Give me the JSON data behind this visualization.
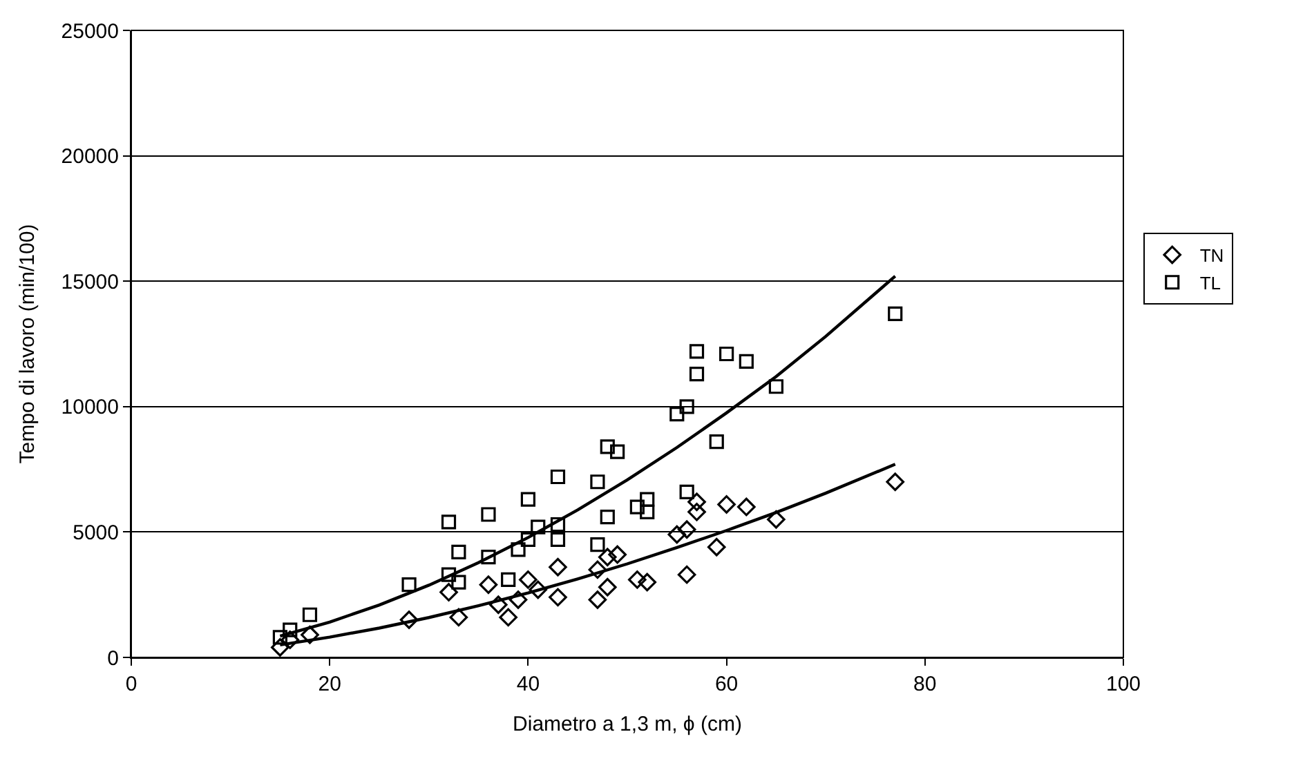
{
  "chart_data": {
    "type": "scatter",
    "xlabel": "Diametro a 1,3 m, ϕ (cm)",
    "ylabel": "Tempo di lavoro (min/100)",
    "xlim": [
      0,
      100
    ],
    "xticks": [
      0,
      20,
      40,
      60,
      80,
      100
    ],
    "ylim": [
      0,
      25000
    ],
    "yticks": [
      0,
      5000,
      10000,
      15000,
      20000,
      25000
    ],
    "grid": "y",
    "legend": "right",
    "series": [
      {
        "name": "TN",
        "color": "#000000",
        "marker": "diamond",
        "x": [
          15,
          16,
          18,
          28,
          32,
          33,
          36,
          37,
          38,
          39,
          40,
          41,
          43,
          43,
          47,
          47,
          48,
          48,
          49,
          51,
          52,
          55,
          56,
          56,
          57,
          57,
          59,
          60,
          62,
          65,
          77
        ],
        "values": [
          400,
          700,
          900,
          1500,
          2600,
          1600,
          2900,
          2100,
          1600,
          2300,
          3100,
          2700,
          3600,
          2400,
          2300,
          3500,
          4000,
          2800,
          4100,
          3100,
          3000,
          4900,
          3300,
          5100,
          5800,
          6200,
          4400,
          6100,
          6000,
          5500,
          7000
        ]
      },
      {
        "name": "TL",
        "color": "#000000",
        "marker": "square",
        "x": [
          15,
          16,
          18,
          28,
          32,
          32,
          33,
          33,
          36,
          36,
          38,
          39,
          40,
          40,
          41,
          43,
          43,
          43,
          47,
          47,
          48,
          48,
          49,
          51,
          52,
          52,
          55,
          56,
          56,
          57,
          57,
          59,
          60,
          62,
          65,
          77
        ],
        "values": [
          800,
          1100,
          1700,
          2900,
          5400,
          3300,
          4200,
          3000,
          5700,
          4000,
          3100,
          4300,
          6300,
          4700,
          5200,
          7200,
          5300,
          4700,
          7000,
          4500,
          8400,
          5600,
          8200,
          6000,
          6300,
          5800,
          9700,
          10000,
          6600,
          12200,
          11300,
          8600,
          12100,
          11800,
          10800,
          13700
        ]
      },
      {
        "type": "line",
        "color": "#000000",
        "line_style": "solid",
        "x": [
          15,
          20,
          25,
          30,
          35,
          40,
          45,
          50,
          55,
          60,
          65,
          70,
          77
        ],
        "values": [
          850,
          1410,
          2090,
          2880,
          3780,
          4780,
          5880,
          7080,
          8370,
          9750,
          11200,
          12800,
          15200
        ]
      },
      {
        "type": "line",
        "color": "#000000",
        "line_style": "solid",
        "x": [
          15,
          20,
          25,
          30,
          35,
          40,
          45,
          50,
          55,
          60,
          65,
          70,
          77
        ],
        "values": [
          500,
          810,
          1170,
          1590,
          2060,
          2570,
          3130,
          3730,
          4380,
          5060,
          5780,
          6550,
          7700
        ]
      }
    ]
  }
}
